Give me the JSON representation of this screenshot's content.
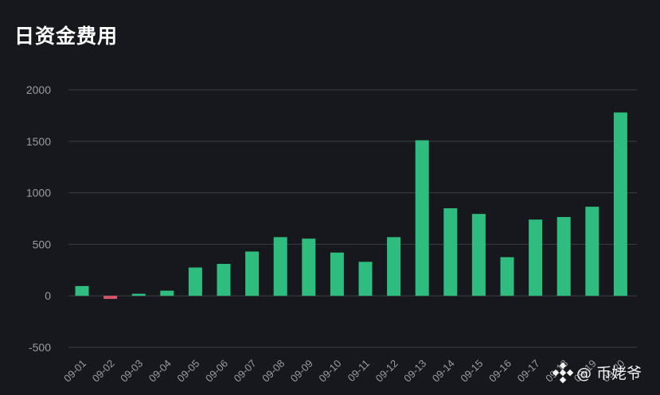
{
  "colors": {
    "background": "#16181d",
    "positive": "#2ebd7f",
    "negative": "#d9556b",
    "grid": "#3b3e46",
    "axis_text": "#9a9ca3"
  },
  "watermark": {
    "text": "@ 币姥爷",
    "icon": "binance-logo-icon"
  },
  "chart_data": {
    "type": "bar",
    "title": "日资金费用",
    "xlabel": "",
    "ylabel": "",
    "ylim": [
      -500,
      2000
    ],
    "yticks": [
      2000,
      1500,
      1000,
      500,
      0,
      -500
    ],
    "grid": true,
    "legend": "none",
    "categories": [
      "09-01",
      "09-02",
      "09-03",
      "09-04",
      "09-05",
      "09-06",
      "09-07",
      "09-08",
      "09-09",
      "09-10",
      "09-11",
      "09-12",
      "09-13",
      "09-14",
      "09-15",
      "09-16",
      "09-17",
      "09-18",
      "09-19",
      "09-20"
    ],
    "values": [
      95,
      -30,
      20,
      50,
      275,
      310,
      430,
      570,
      555,
      420,
      330,
      570,
      1510,
      850,
      795,
      375,
      740,
      765,
      865,
      1780
    ]
  }
}
